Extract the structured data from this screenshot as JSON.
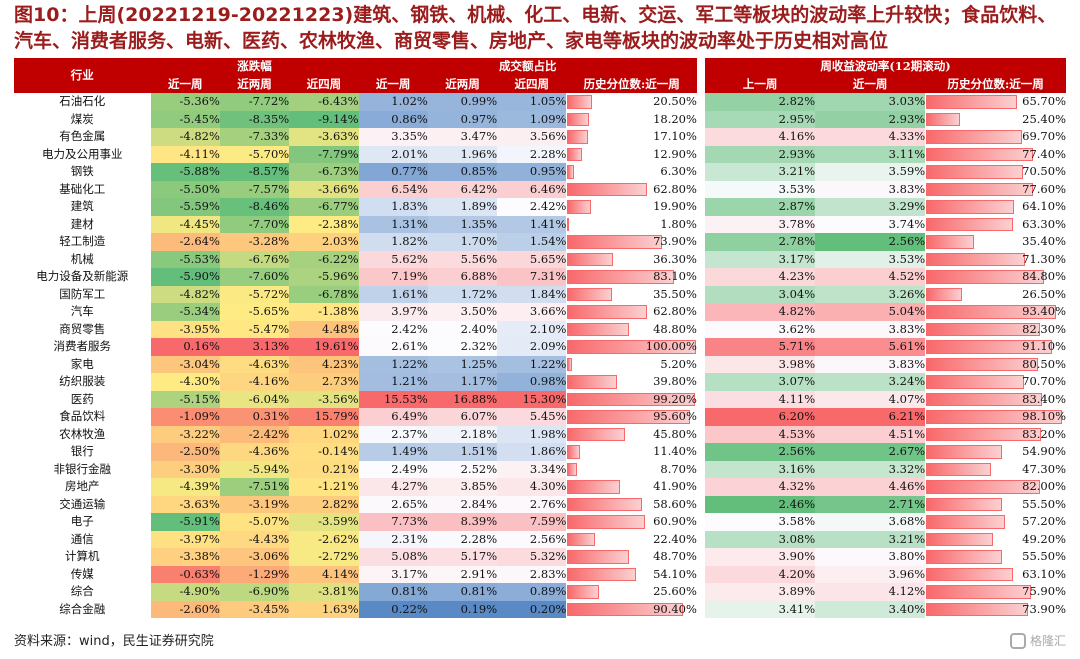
{
  "title": "图10：上周(20221219-20221223)建筑、钢铁、机械、化工、电新、交运、军工等板块的波动率上升较快；食品饮料、汽车、消费者服务、电新、医药、农林牧渔、商贸零售、房地产、家电等板块的波动率处于历史相对高位",
  "source": "资料来源：wind，民生证券研究院",
  "watermark": "格隆汇",
  "headers": {
    "industry": "行业",
    "group_change": "涨跌幅",
    "group_turnover": "成交额占比",
    "group_vol": "周收益波动率(12期滚动)",
    "c1": "近一周",
    "c2": "近两周",
    "c3": "近四周",
    "c4": "近一周",
    "c5": "近两周",
    "c6": "近四周",
    "c7": "历史分位数:近一周",
    "c8": "上一周",
    "c9": "近一周",
    "c10": "历史分位数:近一周"
  },
  "colors": {
    "header": "#c00000",
    "title": "#9b1c1c",
    "green": "#63be7b",
    "yellow": "#ffeb84",
    "red": "#f8696b",
    "blue": "#5a8ac6"
  },
  "chart_data": {
    "type": "table",
    "columns": [
      "行业",
      "涨跌幅-近一周",
      "涨跌幅-近两周",
      "涨跌幅-近四周",
      "成交额占比-近一周",
      "成交额占比-近两周",
      "成交额占比-近四周",
      "成交额占比-历史分位数:近一周",
      "周收益波动率-上一周",
      "周收益波动率-近一周",
      "周收益波动率-历史分位数:近一周"
    ],
    "rows": [
      [
        "石油石化",
        "-5.36%",
        "-7.72%",
        "-6.43%",
        "1.02%",
        "0.99%",
        "1.05%",
        "20.50%",
        "2.82%",
        "3.03%",
        "65.70%"
      ],
      [
        "煤炭",
        "-5.45%",
        "-8.35%",
        "-9.14%",
        "0.86%",
        "0.97%",
        "1.09%",
        "18.20%",
        "2.95%",
        "2.93%",
        "25.40%"
      ],
      [
        "有色金属",
        "-4.82%",
        "-7.33%",
        "-3.63%",
        "3.35%",
        "3.47%",
        "3.56%",
        "17.10%",
        "4.16%",
        "4.33%",
        "69.70%"
      ],
      [
        "电力及公用事业",
        "-4.11%",
        "-5.70%",
        "-7.79%",
        "2.01%",
        "1.96%",
        "2.28%",
        "12.90%",
        "2.93%",
        "3.11%",
        "77.40%"
      ],
      [
        "钢铁",
        "-5.88%",
        "-8.57%",
        "-6.73%",
        "0.77%",
        "0.85%",
        "0.95%",
        "6.30%",
        "3.21%",
        "3.59%",
        "70.50%"
      ],
      [
        "基础化工",
        "-5.50%",
        "-7.57%",
        "-3.66%",
        "6.54%",
        "6.42%",
        "6.46%",
        "62.80%",
        "3.53%",
        "3.83%",
        "77.60%"
      ],
      [
        "建筑",
        "-5.59%",
        "-8.46%",
        "-6.77%",
        "1.83%",
        "1.89%",
        "2.42%",
        "19.90%",
        "2.87%",
        "3.29%",
        "64.10%"
      ],
      [
        "建材",
        "-4.45%",
        "-7.70%",
        "-2.38%",
        "1.31%",
        "1.35%",
        "1.41%",
        "1.80%",
        "3.78%",
        "3.74%",
        "63.30%"
      ],
      [
        "轻工制造",
        "-2.64%",
        "-3.28%",
        "2.03%",
        "1.82%",
        "1.70%",
        "1.54%",
        "73.90%",
        "2.78%",
        "2.56%",
        "35.40%"
      ],
      [
        "机械",
        "-5.53%",
        "-6.76%",
        "-6.22%",
        "5.62%",
        "5.56%",
        "5.65%",
        "36.30%",
        "3.17%",
        "3.53%",
        "71.30%"
      ],
      [
        "电力设备及新能源",
        "-5.90%",
        "-7.60%",
        "-5.96%",
        "7.19%",
        "6.88%",
        "7.31%",
        "83.10%",
        "4.23%",
        "4.52%",
        "84.80%"
      ],
      [
        "国防军工",
        "-4.82%",
        "-5.72%",
        "-6.78%",
        "1.61%",
        "1.72%",
        "1.84%",
        "35.50%",
        "3.04%",
        "3.26%",
        "26.50%"
      ],
      [
        "汽车",
        "-5.34%",
        "-5.65%",
        "-1.38%",
        "3.97%",
        "3.50%",
        "3.66%",
        "62.80%",
        "4.82%",
        "5.04%",
        "93.40%"
      ],
      [
        "商贸零售",
        "-3.95%",
        "-5.47%",
        "4.48%",
        "2.42%",
        "2.40%",
        "2.10%",
        "48.80%",
        "3.62%",
        "3.83%",
        "82.30%"
      ],
      [
        "消费者服务",
        "0.16%",
        "3.13%",
        "19.61%",
        "2.61%",
        "2.32%",
        "2.09%",
        "100.00%",
        "5.71%",
        "5.61%",
        "91.10%"
      ],
      [
        "家电",
        "-3.04%",
        "-4.63%",
        "4.23%",
        "1.22%",
        "1.25%",
        "1.22%",
        "5.20%",
        "3.98%",
        "3.83%",
        "80.50%"
      ],
      [
        "纺织服装",
        "-4.30%",
        "-4.16%",
        "2.73%",
        "1.21%",
        "1.17%",
        "0.98%",
        "39.80%",
        "3.07%",
        "3.24%",
        "70.70%"
      ],
      [
        "医药",
        "-5.15%",
        "-6.04%",
        "-3.56%",
        "15.53%",
        "16.88%",
        "15.30%",
        "99.20%",
        "4.11%",
        "4.07%",
        "83.40%"
      ],
      [
        "食品饮料",
        "-1.09%",
        "0.31%",
        "15.79%",
        "6.49%",
        "6.07%",
        "5.45%",
        "95.60%",
        "6.20%",
        "6.21%",
        "98.10%"
      ],
      [
        "农林牧渔",
        "-3.22%",
        "-2.42%",
        "1.02%",
        "2.37%",
        "2.18%",
        "1.98%",
        "45.80%",
        "4.53%",
        "4.51%",
        "83.20%"
      ],
      [
        "银行",
        "-2.50%",
        "-4.36%",
        "-0.14%",
        "1.49%",
        "1.51%",
        "1.86%",
        "11.40%",
        "2.56%",
        "2.67%",
        "54.90%"
      ],
      [
        "非银行金融",
        "-3.30%",
        "-5.94%",
        "0.21%",
        "2.49%",
        "2.52%",
        "3.34%",
        "8.70%",
        "3.16%",
        "3.32%",
        "47.30%"
      ],
      [
        "房地产",
        "-4.39%",
        "-7.51%",
        "-1.21%",
        "4.27%",
        "3.85%",
        "4.30%",
        "41.90%",
        "4.32%",
        "4.46%",
        "82.00%"
      ],
      [
        "交通运输",
        "-3.63%",
        "-3.19%",
        "2.82%",
        "2.65%",
        "2.84%",
        "2.76%",
        "58.60%",
        "2.46%",
        "2.71%",
        "55.50%"
      ],
      [
        "电子",
        "-5.91%",
        "-5.07%",
        "-3.59%",
        "7.73%",
        "8.39%",
        "7.59%",
        "60.90%",
        "3.58%",
        "3.68%",
        "57.20%"
      ],
      [
        "通信",
        "-3.97%",
        "-4.43%",
        "-2.62%",
        "2.31%",
        "2.28%",
        "2.56%",
        "22.40%",
        "3.08%",
        "3.21%",
        "49.20%"
      ],
      [
        "计算机",
        "-3.38%",
        "-3.06%",
        "-2.72%",
        "5.08%",
        "5.17%",
        "5.32%",
        "48.70%",
        "3.90%",
        "3.80%",
        "55.50%"
      ],
      [
        "传媒",
        "-0.63%",
        "-1.29%",
        "4.14%",
        "3.17%",
        "2.91%",
        "2.83%",
        "54.10%",
        "4.20%",
        "3.96%",
        "63.10%"
      ],
      [
        "综合",
        "-4.90%",
        "-6.90%",
        "-3.81%",
        "0.81%",
        "0.81%",
        "0.89%",
        "25.60%",
        "3.89%",
        "4.12%",
        "75.90%"
      ],
      [
        "综合金融",
        "-2.60%",
        "-3.45%",
        "1.63%",
        "0.22%",
        "0.19%",
        "0.20%",
        "90.40%",
        "3.41%",
        "3.40%",
        "73.90%"
      ]
    ]
  }
}
